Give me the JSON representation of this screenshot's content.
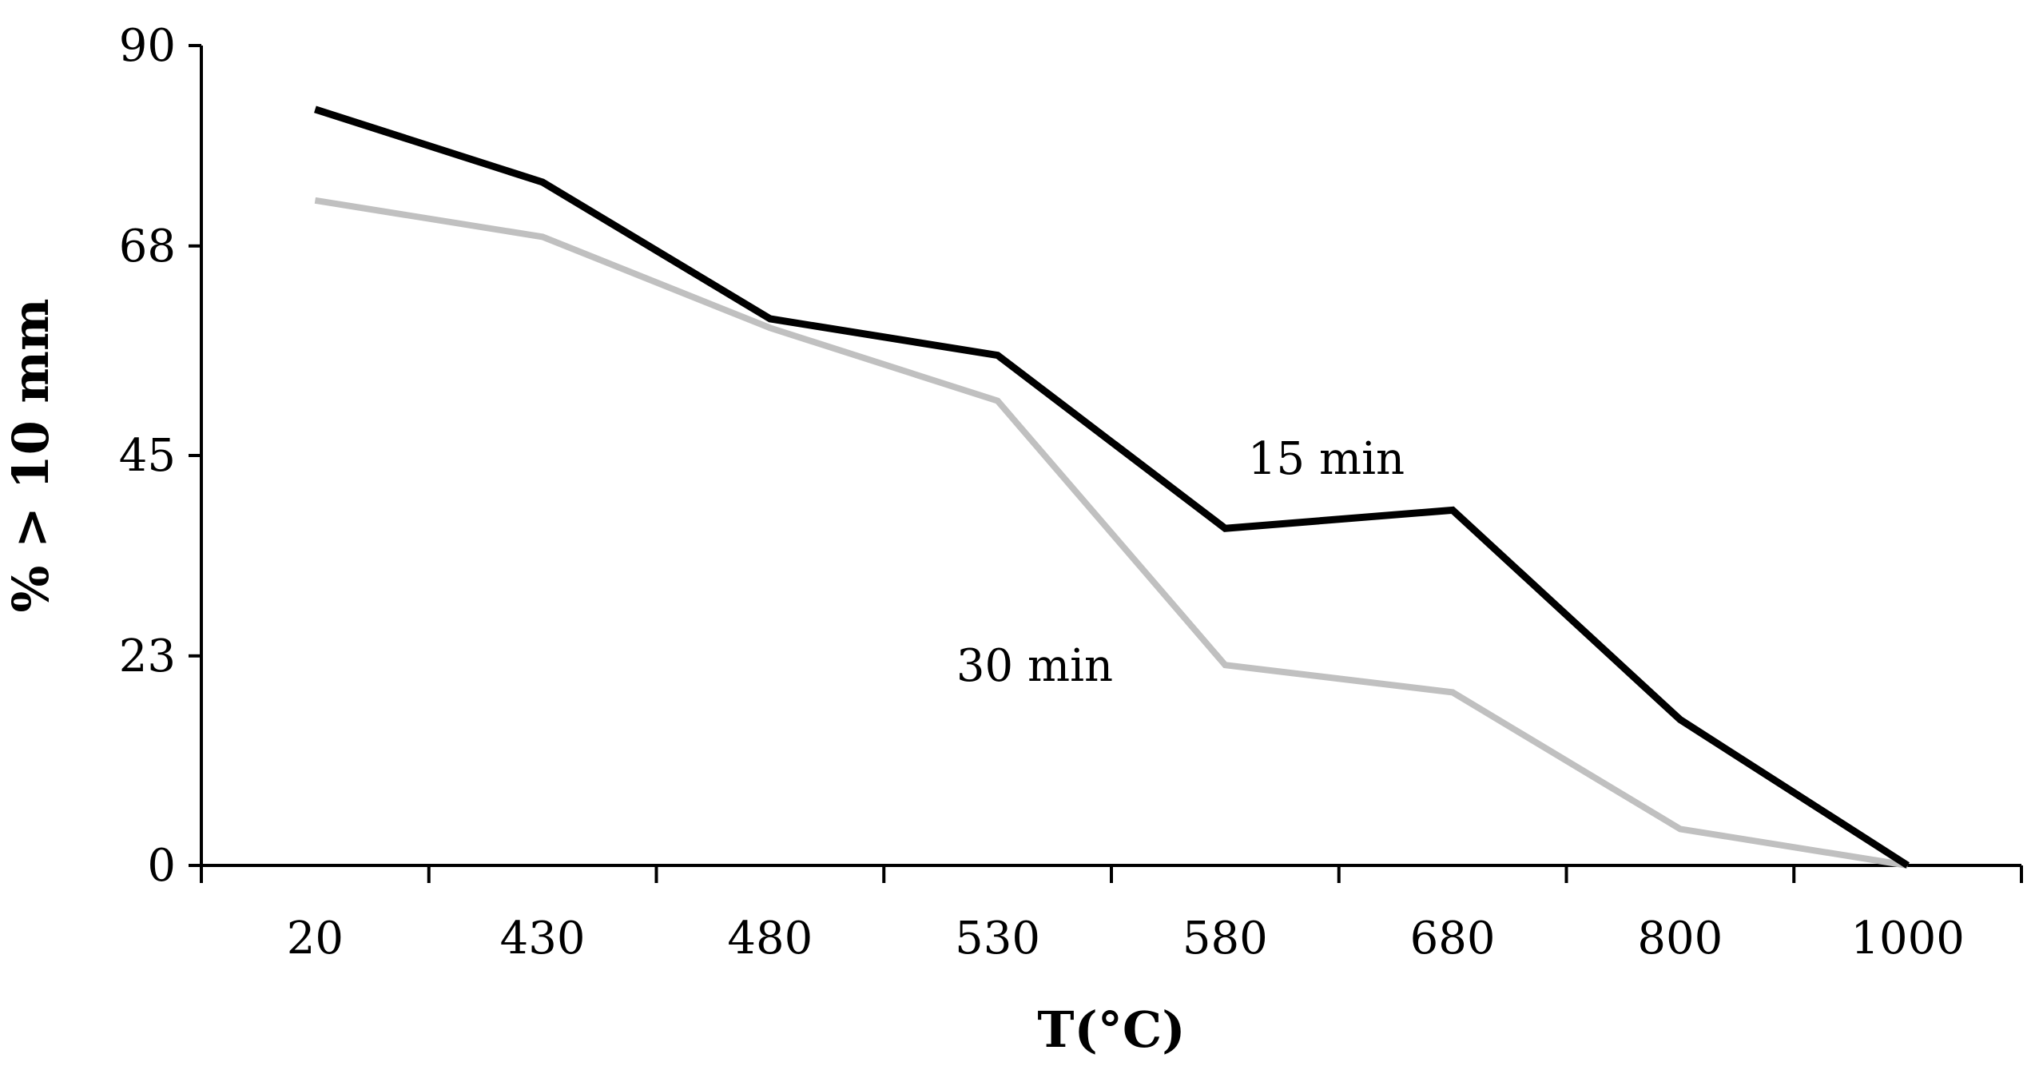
{
  "chart_data": {
    "type": "line",
    "title": "",
    "xlabel": "T(°C)",
    "ylabel": "% > 10 mm",
    "categories": [
      "20",
      "430",
      "480",
      "530",
      "580",
      "680",
      "800",
      "1000"
    ],
    "yticks": [
      "0",
      "23",
      "45",
      "68",
      "90"
    ],
    "ylim": [
      0,
      90
    ],
    "grid": false,
    "legend": "none",
    "series": [
      {
        "name": "15 min",
        "color": "#000000",
        "values": [
          83,
          75,
          60,
          56,
          37,
          39,
          16,
          0
        ]
      },
      {
        "name": "30 min",
        "color": "#c0c0c0",
        "values": [
          73,
          69,
          59,
          51,
          22,
          19,
          4,
          0
        ]
      }
    ],
    "annotations": [
      {
        "text": "15 min",
        "series": "15 min"
      },
      {
        "text": "30 min",
        "series": "30 min"
      }
    ]
  }
}
